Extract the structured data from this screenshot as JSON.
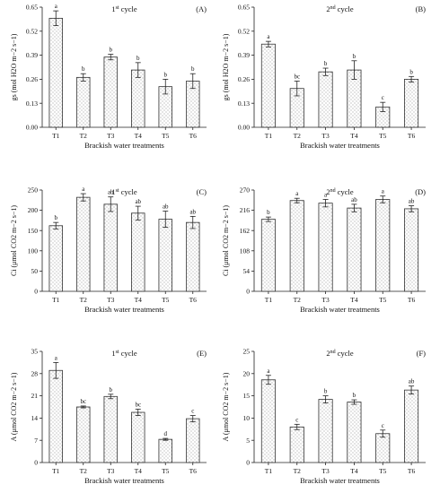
{
  "figure": {
    "x_tick_labels": [
      "T1",
      "T2",
      "T3",
      "T4",
      "T5",
      "T6"
    ],
    "common_xlabel": "Brackish water treatments"
  },
  "chart_data": [
    {
      "type": "bar",
      "panel": "(A)",
      "title_main": "1",
      "title_sup": "st",
      "title_rest": " cycle",
      "ylabel": "gs (mol H2O m−2 s−1)",
      "xlabel": "Brackish water treatments",
      "categories": [
        "T1",
        "T2",
        "T3",
        "T4",
        "T5",
        "T6"
      ],
      "values": [
        0.59,
        0.27,
        0.38,
        0.31,
        0.22,
        0.25
      ],
      "errors": [
        0.04,
        0.02,
        0.015,
        0.04,
        0.04,
        0.04
      ],
      "letters": [
        "a",
        "b",
        "b",
        "b",
        "b",
        "b"
      ],
      "ylim": [
        0,
        0.65
      ],
      "yticks": [
        "0.00",
        "0.13",
        "0.26",
        "0.39",
        "0.52",
        "0.65"
      ],
      "ytick_values": [
        0,
        0.13,
        0.26,
        0.39,
        0.52,
        0.65
      ]
    },
    {
      "type": "bar",
      "panel": "(B)",
      "title_main": "2",
      "title_sup": "nd",
      "title_rest": " cycle",
      "ylabel": "gs (mol H2O m−2 s−1)",
      "xlabel": "Brackish water treatments",
      "categories": [
        "T1",
        "T2",
        "T3",
        "T4",
        "T5",
        "T6"
      ],
      "values": [
        0.45,
        0.21,
        0.3,
        0.31,
        0.11,
        0.26
      ],
      "errors": [
        0.015,
        0.04,
        0.02,
        0.05,
        0.025,
        0.015
      ],
      "letters": [
        "a",
        "bc",
        "b",
        "b",
        "c",
        "b"
      ],
      "ylim": [
        0,
        0.65
      ],
      "yticks": [
        "0.00",
        "0.13",
        "0.26",
        "0.39",
        "0.52",
        "0.65"
      ],
      "ytick_values": [
        0,
        0.13,
        0.26,
        0.39,
        0.52,
        0.65
      ]
    },
    {
      "type": "bar",
      "panel": "(C)",
      "title_main": "1",
      "title_sup": "st",
      "title_rest": " cycle",
      "ylabel": "Ci (μmol CO2 m−2 s−1)",
      "xlabel": "Brackish water treatments",
      "categories": [
        "T1",
        "T2",
        "T3",
        "T4",
        "T5",
        "T6"
      ],
      "values": [
        162,
        232,
        215,
        193,
        178,
        170
      ],
      "errors": [
        8,
        9,
        18,
        17,
        20,
        15
      ],
      "letters": [
        "b",
        "a",
        "ab",
        "ab",
        "ab",
        "ab"
      ],
      "ylim": [
        0,
        250
      ],
      "yticks": [
        "0",
        "50",
        "100",
        "150",
        "200",
        "250"
      ],
      "ytick_values": [
        0,
        50,
        100,
        150,
        200,
        250
      ]
    },
    {
      "type": "bar",
      "panel": "(D)",
      "title_main": "2",
      "title_sup": "nd",
      "title_rest": " cycle",
      "ylabel": "Ci (μmol CO2 m−2 s−1)",
      "xlabel": "Brackish water treatments",
      "categories": [
        "T1",
        "T2",
        "T3",
        "T4",
        "T5",
        "T6"
      ],
      "values": [
        192,
        242,
        235,
        222,
        245,
        220
      ],
      "errors": [
        6,
        6,
        10,
        10,
        9,
        8
      ],
      "letters": [
        "b",
        "a",
        "a",
        "ab",
        "a",
        "ab"
      ],
      "ylim": [
        0,
        270
      ],
      "yticks": [
        "0",
        "54",
        "108",
        "162",
        "216",
        "270"
      ],
      "ytick_values": [
        0,
        54,
        108,
        162,
        216,
        270
      ]
    },
    {
      "type": "bar",
      "panel": "(E)",
      "title_main": "1",
      "title_sup": "st",
      "title_rest": " cycle",
      "ylabel": "A (μmol CO2 m−2 s−1)",
      "xlabel": "Brackish water treatments",
      "categories": [
        "T1",
        "T2",
        "T3",
        "T4",
        "T5",
        "T6"
      ],
      "values": [
        29,
        17.5,
        20.8,
        15.8,
        7.3,
        13.8
      ],
      "errors": [
        2.5,
        0.3,
        0.7,
        1.0,
        0.3,
        1.0
      ],
      "letters": [
        "a",
        "bc",
        "b",
        "bc",
        "d",
        "c"
      ],
      "ylim": [
        0,
        35
      ],
      "yticks": [
        "0",
        "7",
        "14",
        "21",
        "28",
        "35"
      ],
      "ytick_values": [
        0,
        7,
        14,
        21,
        28,
        35
      ]
    },
    {
      "type": "bar",
      "panel": "(F)",
      "title_main": "2",
      "title_sup": "nd",
      "title_rest": " cycle",
      "ylabel": "A (μmol CO2 m−2 s−1)",
      "xlabel": "Brackish water treatments",
      "categories": [
        "T1",
        "T2",
        "T3",
        "T4",
        "T5",
        "T6"
      ],
      "values": [
        18.6,
        8.0,
        14.2,
        13.6,
        6.5,
        16.3
      ],
      "errors": [
        1.0,
        0.6,
        0.8,
        0.5,
        0.8,
        0.9
      ],
      "letters": [
        "a",
        "c",
        "b",
        "b",
        "c",
        "ab"
      ],
      "ylim": [
        0,
        25
      ],
      "yticks": [
        "0",
        "5",
        "10",
        "15",
        "20",
        "25"
      ],
      "ytick_values": [
        0,
        5,
        10,
        15,
        20,
        25
      ]
    }
  ]
}
